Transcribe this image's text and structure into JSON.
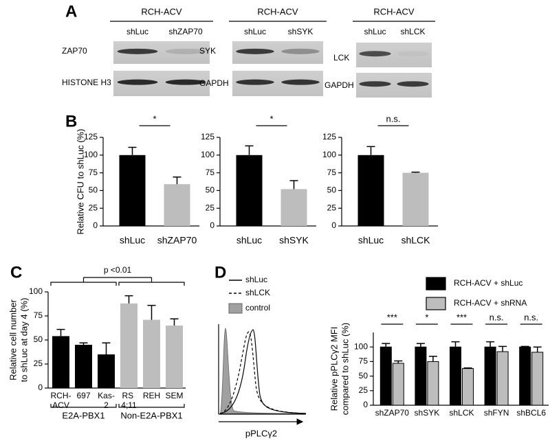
{
  "panel_labels": [
    "A",
    "B",
    "C",
    "D"
  ],
  "blots": [
    {
      "header": "RCH-ACV",
      "lanes": [
        "shLuc",
        "shZAP70"
      ],
      "proteins": [
        "ZAP70",
        "HISTONE H3"
      ]
    },
    {
      "header": "RCH-ACV",
      "lanes": [
        "shLuc",
        "shSYK"
      ],
      "proteins": [
        "SYK",
        "GAPDH"
      ]
    },
    {
      "header": "RCH-ACV",
      "lanes": [
        "shLuc",
        "shLCK"
      ],
      "proteins": [
        "LCK",
        "GAPDH"
      ]
    }
  ],
  "flow_histogram": {
    "legend": [
      "shLuc",
      "shLCK",
      "control"
    ],
    "x_label": "pPLCγ2"
  },
  "chart_data": [
    {
      "type": "bar",
      "y_label": [
        "Relative CFU to shLuc (%)"
      ],
      "categories": [
        "shLuc",
        "shZAP70"
      ],
      "values": [
        100,
        59
      ],
      "errors": [
        11,
        10
      ],
      "colors": [
        "#000000",
        "#bdbdbd"
      ],
      "ylim": [
        0,
        125
      ],
      "yticks": [
        0,
        25,
        50,
        75,
        100,
        125
      ],
      "significance": "*"
    },
    {
      "type": "bar",
      "categories": [
        "shLuc",
        "shSYK"
      ],
      "values": [
        100,
        52
      ],
      "errors": [
        13,
        12
      ],
      "colors": [
        "#000000",
        "#bdbdbd"
      ],
      "ylim": [
        0,
        125
      ],
      "yticks": [
        0,
        25,
        50,
        75,
        100,
        125
      ],
      "significance": "*"
    },
    {
      "type": "bar",
      "categories": [
        "shLuc",
        "shLCK"
      ],
      "values": [
        100,
        75
      ],
      "errors": [
        12,
        1
      ],
      "colors": [
        "#000000",
        "#bdbdbd"
      ],
      "ylim": [
        0,
        125
      ],
      "yticks": [
        0,
        25,
        50,
        75,
        100,
        125
      ],
      "significance": "n.s."
    },
    {
      "type": "bar",
      "y_label": [
        "Relative cell number",
        "to shLuc at day 4 (%)"
      ],
      "categories": [
        "RCH-ACV",
        "697",
        "Kas-2",
        "RS 4;11",
        "REH",
        "SEM"
      ],
      "values": [
        54,
        45,
        35,
        88,
        71,
        65
      ],
      "errors": [
        7,
        2,
        12,
        8,
        15,
        7
      ],
      "colors": [
        "#000000",
        "#000000",
        "#000000",
        "#bdbdbd",
        "#bdbdbd",
        "#bdbdbd"
      ],
      "ylim": [
        0,
        100
      ],
      "yticks": [
        0,
        25,
        50,
        75,
        100
      ],
      "groups": [
        {
          "name": "E2A-PBX1",
          "members": [
            "RCH-ACV",
            "697",
            "Kas-2"
          ]
        },
        {
          "name": "Non-E2A-PBX1",
          "members": [
            "RS 4;11",
            "REH",
            "SEM"
          ]
        }
      ],
      "comparison": "p <0.01"
    },
    {
      "type": "grouped-bar",
      "y_label": [
        "Relative pPLCγ2 MFI",
        "compared to shLuc (%)"
      ],
      "categories": [
        "shZAP70",
        "shSYK",
        "shLCK",
        "shFYN",
        "shBCL6"
      ],
      "series": [
        {
          "name": "RCH-ACV + shLuc",
          "color": "#000000",
          "values": [
            100,
            100,
            100,
            100,
            100
          ],
          "errors": [
            6,
            6,
            9,
            9,
            1
          ]
        },
        {
          "name": "RCH-ACV + shRNA",
          "color": "#bdbdbd",
          "values": [
            72,
            75,
            63,
            92,
            91
          ],
          "errors": [
            4,
            9,
            1,
            9,
            9
          ]
        }
      ],
      "ylim": [
        0,
        125
      ],
      "yticks": [
        0,
        25,
        50,
        75,
        100
      ],
      "significance": [
        "***",
        "*",
        "***",
        "n.s.",
        "n.s."
      ],
      "legend": "top-right"
    }
  ]
}
